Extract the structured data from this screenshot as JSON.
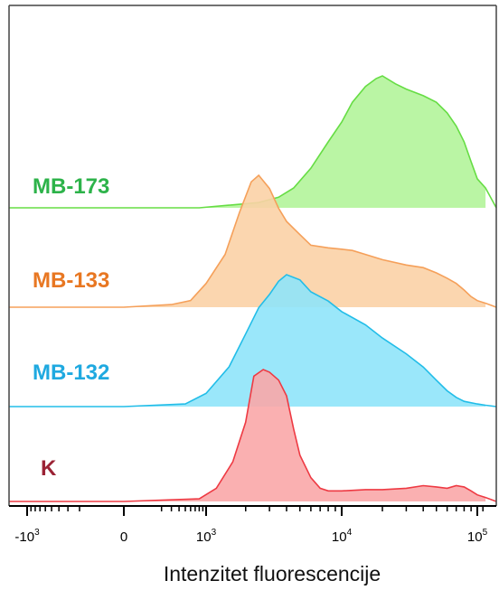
{
  "chart_data": {
    "type": "area",
    "xlabel": "Intenzitet fluorescencije",
    "x_scale": "biexponential",
    "x_ticks": [
      {
        "value": -1000,
        "base": "-10",
        "exp": "3"
      },
      {
        "value": 0,
        "base": "0",
        "exp": ""
      },
      {
        "value": 1000,
        "base": "10",
        "exp": "3"
      },
      {
        "value": 10000,
        "base": "10",
        "exp": "4"
      },
      {
        "value": 100000,
        "base": "10",
        "exp": "5"
      }
    ],
    "grid": false,
    "legend": "inline labels",
    "series": [
      {
        "name": "MB-173",
        "fill": "#b3f49a",
        "stroke": "#66dd44",
        "label_color": "#2db34a",
        "points": [
          [
            800,
            0
          ],
          [
            1500,
            0.02
          ],
          [
            2500,
            0.04
          ],
          [
            3500,
            0.08
          ],
          [
            4500,
            0.15
          ],
          [
            6000,
            0.3
          ],
          [
            8000,
            0.5
          ],
          [
            10000,
            0.65
          ],
          [
            12000,
            0.8
          ],
          [
            15000,
            0.92
          ],
          [
            18000,
            0.98
          ],
          [
            20000,
            1.0
          ],
          [
            25000,
            0.94
          ],
          [
            30000,
            0.9
          ],
          [
            40000,
            0.85
          ],
          [
            50000,
            0.8
          ],
          [
            60000,
            0.72
          ],
          [
            70000,
            0.62
          ],
          [
            80000,
            0.5
          ],
          [
            90000,
            0.35
          ],
          [
            100000,
            0.22
          ],
          [
            115000,
            0.15
          ]
        ]
      },
      {
        "name": "MB-133",
        "fill": "#fbd2a6",
        "stroke": "#f5a05a",
        "label_color": "#e87722",
        "points": [
          [
            0,
            0
          ],
          [
            300,
            0.02
          ],
          [
            600,
            0.05
          ],
          [
            1000,
            0.18
          ],
          [
            1400,
            0.4
          ],
          [
            1800,
            0.72
          ],
          [
            2200,
            0.95
          ],
          [
            2500,
            1.0
          ],
          [
            3000,
            0.9
          ],
          [
            3500,
            0.75
          ],
          [
            4000,
            0.65
          ],
          [
            5000,
            0.55
          ],
          [
            6000,
            0.47
          ],
          [
            8000,
            0.45
          ],
          [
            10000,
            0.44
          ],
          [
            12000,
            0.43
          ],
          [
            15000,
            0.4
          ],
          [
            20000,
            0.36
          ],
          [
            30000,
            0.32
          ],
          [
            40000,
            0.3
          ],
          [
            50000,
            0.26
          ],
          [
            60000,
            0.22
          ],
          [
            70000,
            0.18
          ],
          [
            80000,
            0.13
          ],
          [
            90000,
            0.08
          ],
          [
            100000,
            0.05
          ],
          [
            115000,
            0.03
          ]
        ]
      },
      {
        "name": "MB-132",
        "fill": "#8fe4fa",
        "stroke": "#22bde8",
        "label_color": "#1fa9e0",
        "points": [
          [
            0,
            0
          ],
          [
            500,
            0.02
          ],
          [
            1000,
            0.1
          ],
          [
            1500,
            0.3
          ],
          [
            2000,
            0.55
          ],
          [
            2500,
            0.75
          ],
          [
            3000,
            0.85
          ],
          [
            3500,
            0.95
          ],
          [
            4000,
            1.0
          ],
          [
            5000,
            0.96
          ],
          [
            6000,
            0.87
          ],
          [
            8000,
            0.8
          ],
          [
            10000,
            0.72
          ],
          [
            15000,
            0.62
          ],
          [
            20000,
            0.52
          ],
          [
            30000,
            0.4
          ],
          [
            40000,
            0.3
          ],
          [
            50000,
            0.2
          ],
          [
            60000,
            0.12
          ],
          [
            70000,
            0.07
          ],
          [
            80000,
            0.04
          ],
          [
            100000,
            0.02
          ],
          [
            115000,
            0.01
          ]
        ]
      },
      {
        "name": "K",
        "fill": "#f9a7a9",
        "stroke": "#ee3a43",
        "label_color": "#9b2335",
        "points": [
          [
            0,
            0
          ],
          [
            800,
            0.02
          ],
          [
            1200,
            0.1
          ],
          [
            1600,
            0.3
          ],
          [
            2000,
            0.6
          ],
          [
            2300,
            0.95
          ],
          [
            2700,
            1.0
          ],
          [
            3000,
            0.98
          ],
          [
            3500,
            0.92
          ],
          [
            4000,
            0.8
          ],
          [
            4500,
            0.55
          ],
          [
            5000,
            0.35
          ],
          [
            6000,
            0.18
          ],
          [
            7000,
            0.1
          ],
          [
            8000,
            0.08
          ],
          [
            10000,
            0.08
          ],
          [
            15000,
            0.09
          ],
          [
            20000,
            0.09
          ],
          [
            30000,
            0.1
          ],
          [
            40000,
            0.12
          ],
          [
            50000,
            0.11
          ],
          [
            60000,
            0.1
          ],
          [
            70000,
            0.12
          ],
          [
            80000,
            0.11
          ],
          [
            90000,
            0.08
          ],
          [
            100000,
            0.05
          ],
          [
            115000,
            0.03
          ]
        ]
      }
    ]
  }
}
